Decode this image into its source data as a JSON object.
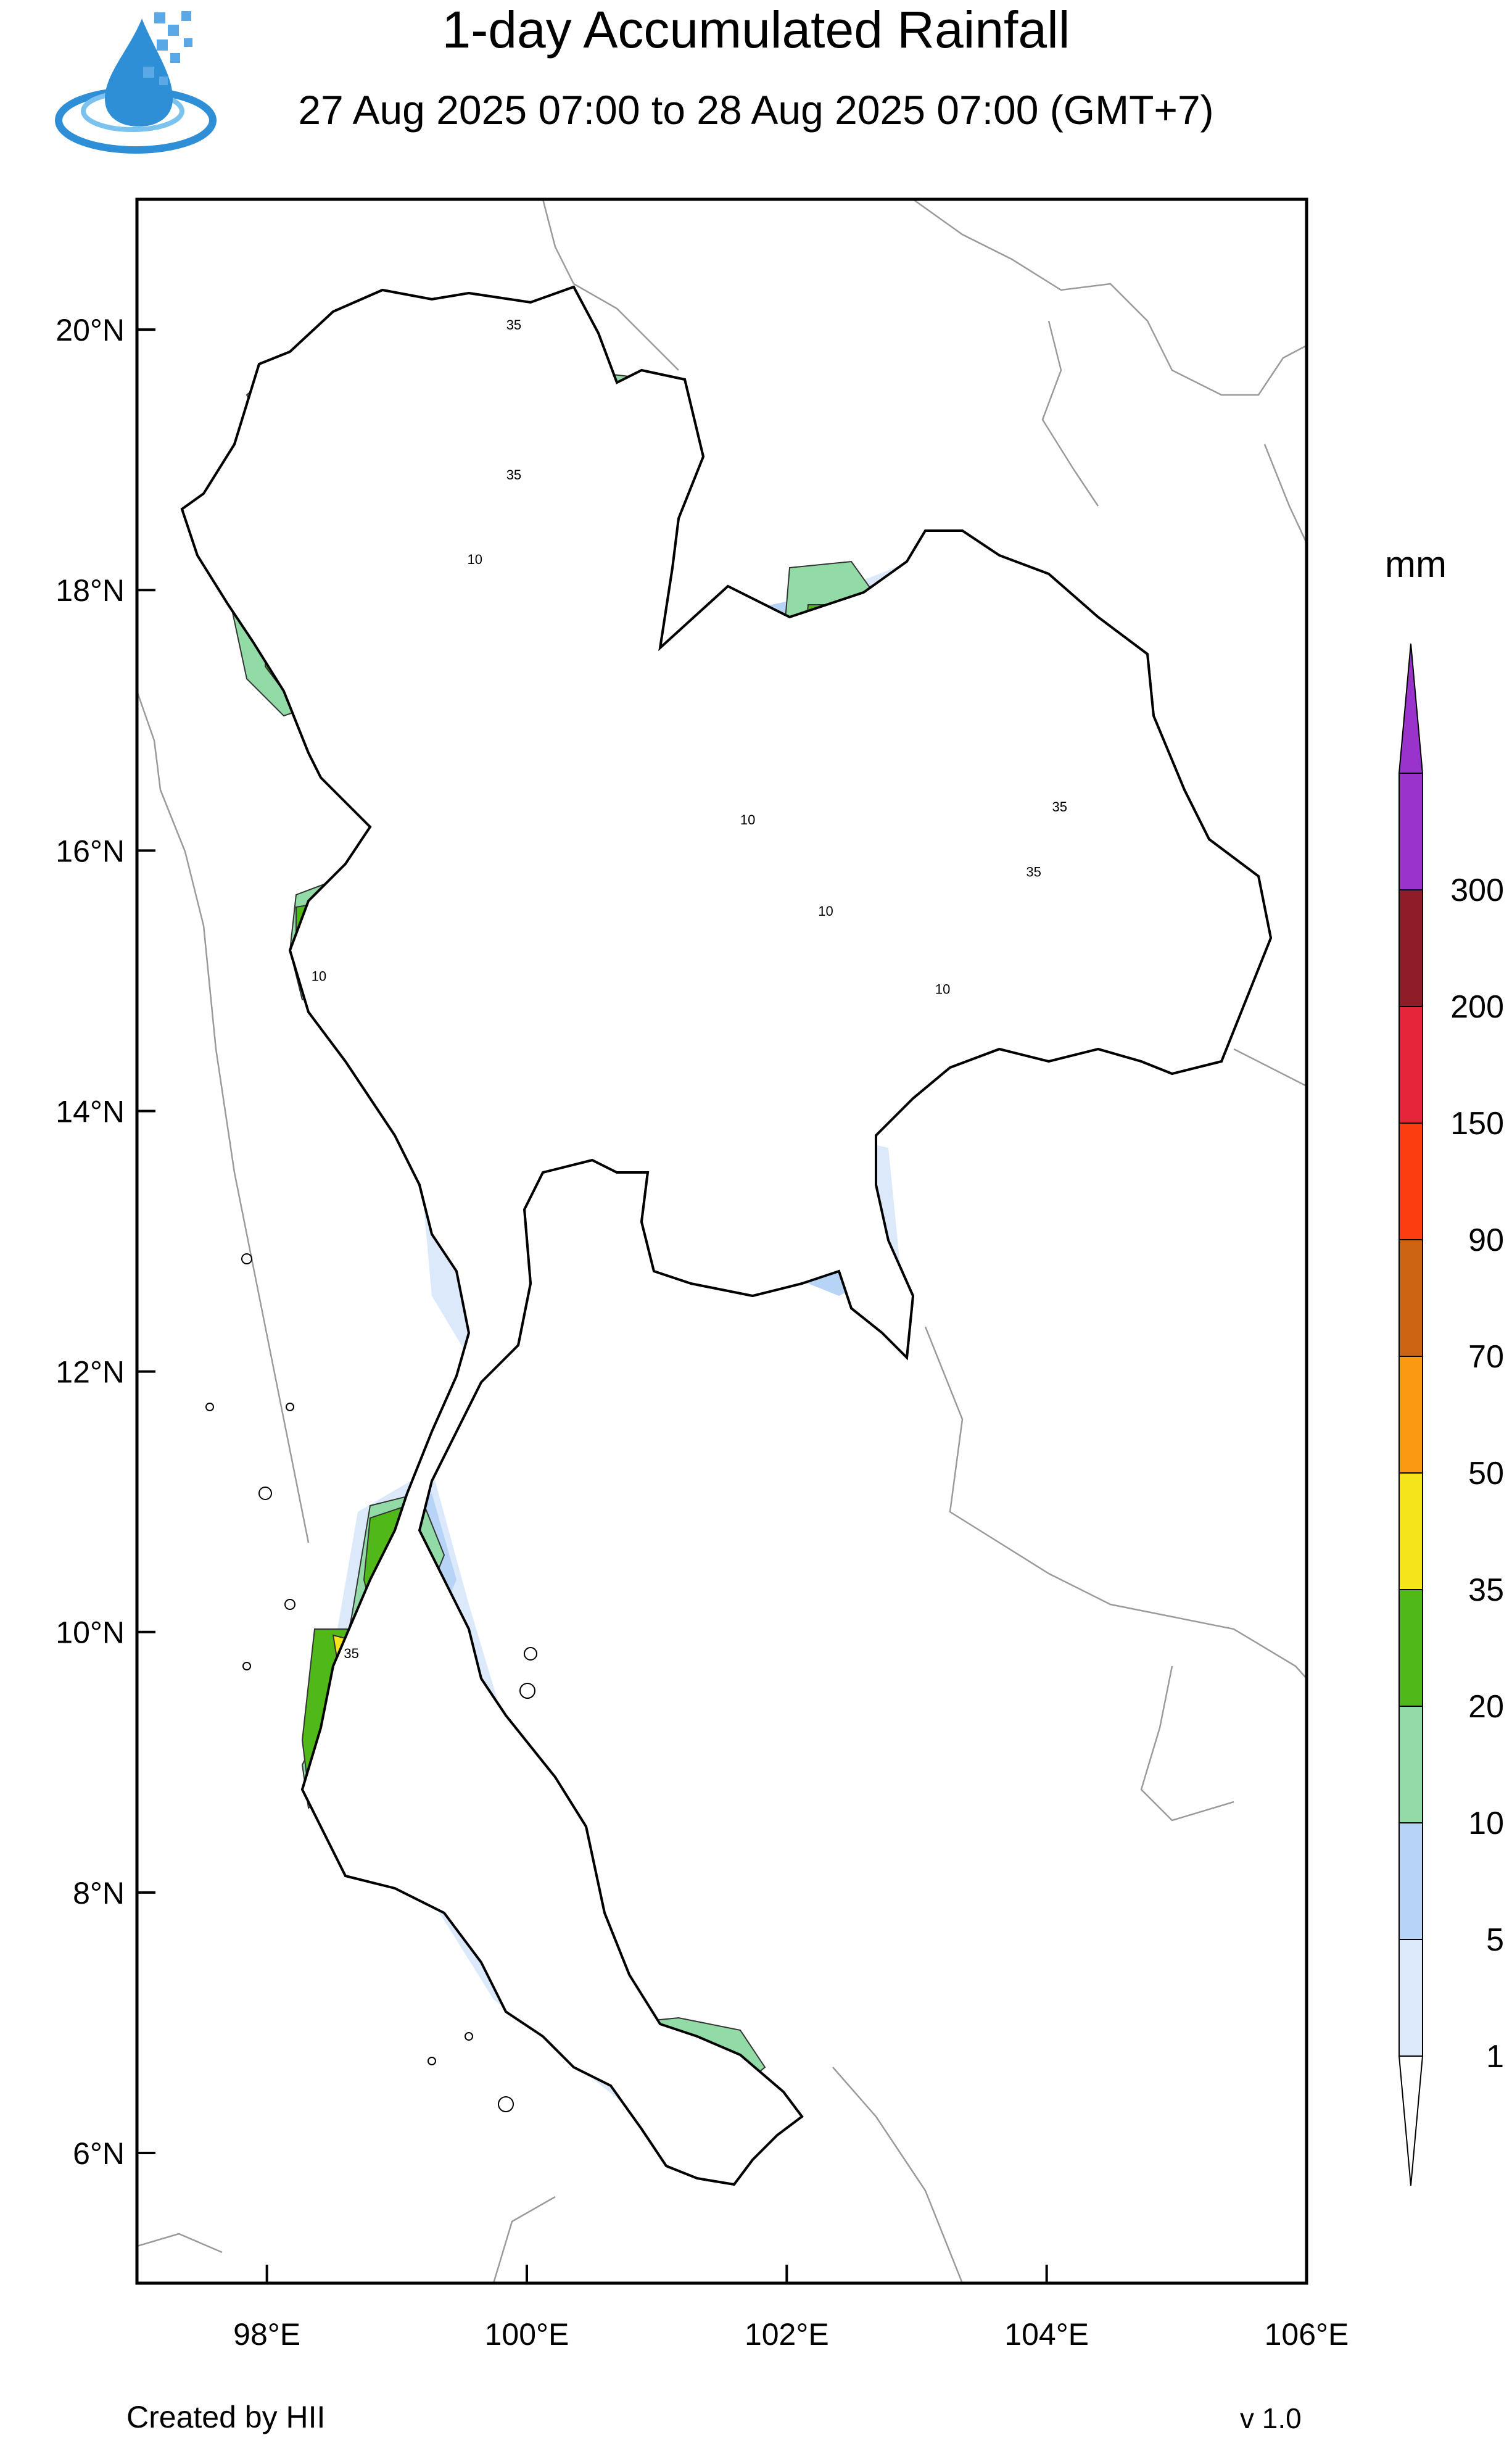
{
  "header": {
    "title": "1-day Accumulated Rainfall",
    "subtitle": "27 Aug 2025 07:00 to 28 Aug 2025 07:00 (GMT+7)"
  },
  "logo": {
    "icon": "water-drop-logo-icon",
    "colors": {
      "blue": "#2e8fd6",
      "light": "#7cc2ef"
    }
  },
  "map": {
    "lon_range": [
      97,
      106
    ],
    "lat_range": [
      5,
      21
    ],
    "lon_ticks": [
      {
        "value": 98,
        "label": "98°E"
      },
      {
        "value": 100,
        "label": "100°E"
      },
      {
        "value": 102,
        "label": "102°E"
      },
      {
        "value": 104,
        "label": "104°E"
      },
      {
        "value": 106,
        "label": "106°E"
      }
    ],
    "lat_ticks": [
      {
        "value": 20,
        "label": "20°N"
      },
      {
        "value": 18,
        "label": "18°N"
      },
      {
        "value": 16,
        "label": "16°N"
      },
      {
        "value": 14,
        "label": "14°N"
      },
      {
        "value": 12,
        "label": "12°N"
      },
      {
        "value": 10,
        "label": "10°N"
      },
      {
        "value": 8,
        "label": "8°N"
      },
      {
        "value": 6,
        "label": "6°N"
      }
    ],
    "contour_labels": [
      {
        "text": "10",
        "lon": 99.6,
        "lat": 18.2
      },
      {
        "text": "35",
        "lon": 99.9,
        "lat": 20.0
      },
      {
        "text": "35",
        "lon": 99.9,
        "lat": 18.85
      },
      {
        "text": "10",
        "lon": 101.7,
        "lat": 16.2
      },
      {
        "text": "35",
        "lon": 103.9,
        "lat": 15.8
      },
      {
        "text": "35",
        "lon": 104.1,
        "lat": 16.3
      },
      {
        "text": "35",
        "lon": 98.65,
        "lat": 9.8
      },
      {
        "text": "10",
        "lon": 103.2,
        "lat": 14.9
      },
      {
        "text": "10",
        "lon": 102.3,
        "lat": 15.5
      },
      {
        "text": "10",
        "lon": 98.4,
        "lat": 15.0
      }
    ]
  },
  "legend": {
    "unit": "mm",
    "bins": [
      {
        "label": "1",
        "color": "#dbe9fb"
      },
      {
        "label": "5",
        "color": "#b7d3f6"
      },
      {
        "label": "10",
        "color": "#92dba6"
      },
      {
        "label": "20",
        "color": "#50b919"
      },
      {
        "label": "35",
        "color": "#f5e31b"
      },
      {
        "label": "50",
        "color": "#fb9a12"
      },
      {
        "label": "70",
        "color": "#cc6411"
      },
      {
        "label": "90",
        "color": "#fb3d10"
      },
      {
        "label": "150",
        "color": "#e5263a"
      },
      {
        "label": "200",
        "color": "#8e1d27"
      },
      {
        "label": "300",
        "color": "#9933cc"
      }
    ]
  },
  "footer": {
    "credit": "Created by HII",
    "version": "v 1.0"
  }
}
